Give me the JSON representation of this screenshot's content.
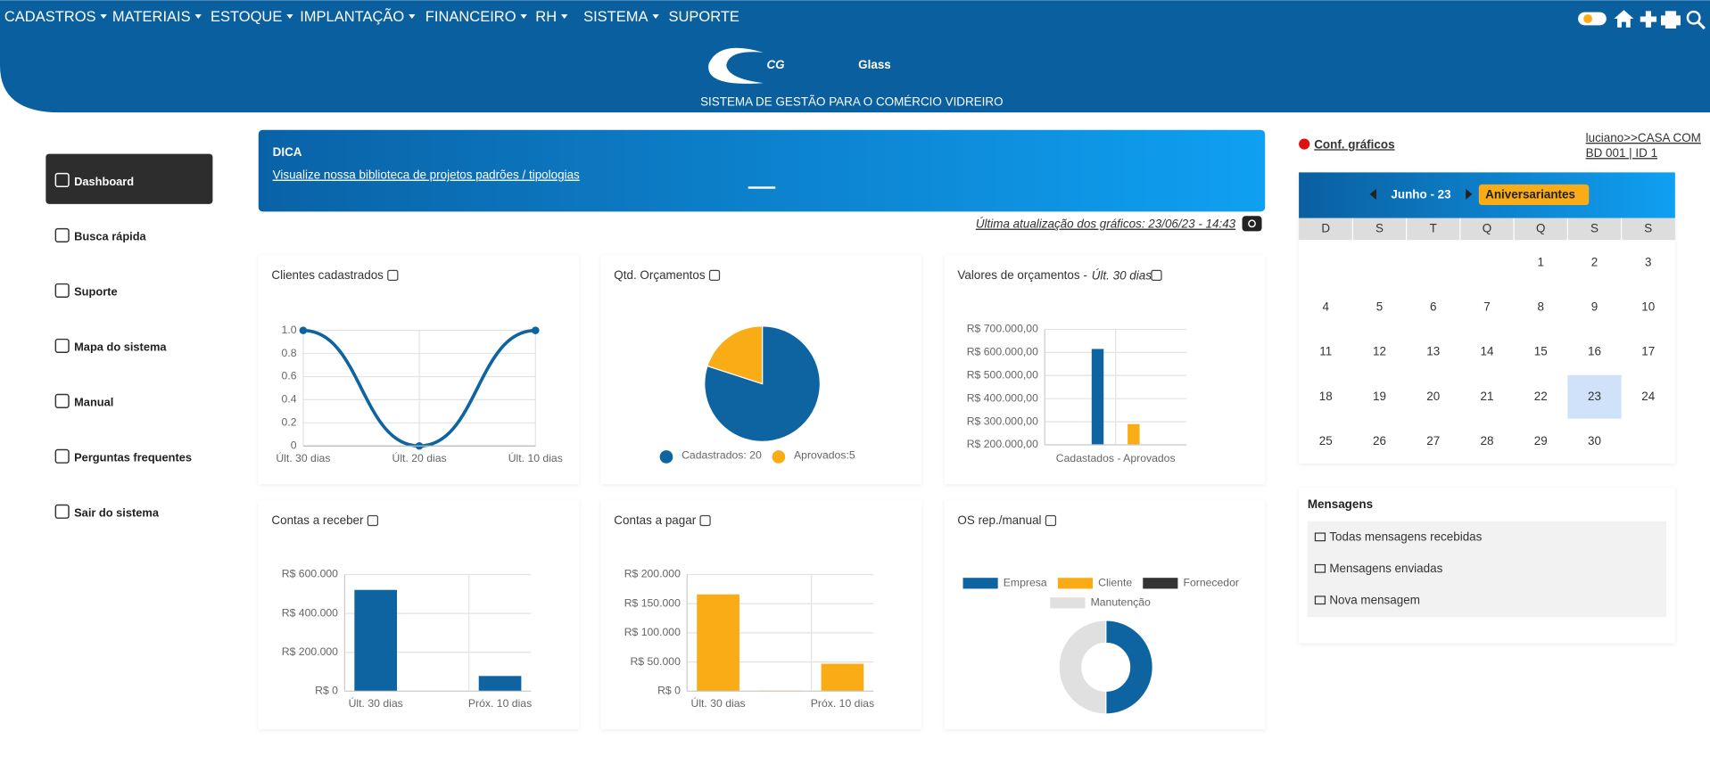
{
  "menu": {
    "items": [
      "CADASTROS",
      "MATERIAIS",
      "ESTOQUE",
      "IMPLANTAÇÃO",
      "FINANCEIRO",
      "RH",
      "SISTEMA",
      "SUPORTE"
    ]
  },
  "logo": {
    "mark": "CG",
    "name": "Glass",
    "tagline": "SISTEMA DE GESTÃO PARA O COMÉRCIO VIDREIRO"
  },
  "sidebar": {
    "items": [
      "Dashboard",
      "Busca rápida",
      "Suporte",
      "Mapa do sistema",
      "Manual",
      "Perguntas frequentes",
      "Sair do sistema"
    ]
  },
  "tip": {
    "title": "DICA",
    "link": "Visualize nossa biblioteca de projetos padrões / tipologias"
  },
  "last_update": "Última atualização dos gráficos: 23/06/23 - 14:43",
  "charts": [
    {
      "type": "line",
      "title": "Clientes cadastrados",
      "categories": [
        "Últ. 30 dias",
        "Últ. 20 dias",
        "Últ. 10 dias"
      ],
      "values": [
        1,
        0,
        1
      ],
      "color": "#0e64a0",
      "ylim": [
        0,
        1
      ],
      "yticks": [
        0,
        0.2,
        0.4,
        0.6,
        0.8,
        {
          "value": 1,
          "label": "1.0"
        }
      ],
      "grid": true
    },
    {
      "type": "pie",
      "title": "Qtd. Orçamentos",
      "categories": [
        "Cadastrados: 20",
        "Aprovados:5"
      ],
      "values": [
        20,
        5
      ],
      "colors": [
        "#0e64a0",
        "#f9ac16"
      ]
    },
    {
      "type": "bar",
      "title": "Valores de orçamentos -",
      "title_note": "Últ. 30 dias",
      "categories": [
        "Cadastados - Aprovados"
      ],
      "values": [
        615000,
        290000
      ],
      "colors": [
        "#0e64a0",
        "#f9ac16"
      ],
      "ylim": [
        200000,
        700000
      ],
      "yticks": [
        {
          "value": 200000,
          "label": "R$ 200.000,00"
        },
        {
          "value": 300000,
          "label": "R$ 300.000,00"
        },
        {
          "value": 400000,
          "label": "R$ 400.000,00"
        },
        {
          "value": 500000,
          "label": "R$ 500.000,00"
        },
        {
          "value": 600000,
          "label": "R$ 600.000,00"
        },
        {
          "value": 700000,
          "label": "R$ 700.000,00"
        }
      ],
      "grid": true
    },
    {
      "type": "bar",
      "title": "Contas a receber",
      "categories": [
        "Últ. 30 dias",
        null,
        "Próx. 10 dias"
      ],
      "values": [
        521000,
        0,
        78000
      ],
      "colors": [
        "#0e64a0",
        "#0e64a0",
        "#0e64a0"
      ],
      "ylim": [
        0,
        600000
      ],
      "yticks": [
        {
          "value": 0,
          "label": "R$ 0"
        },
        {
          "value": 200000,
          "label": "R$ 200.000"
        },
        {
          "value": 400000,
          "label": "R$ 400.000"
        },
        {
          "value": 600000,
          "label": "R$ 600.000"
        }
      ],
      "grid": true
    },
    {
      "type": "bar",
      "title": "Contas a pagar",
      "categories": [
        "Últ. 30 dias",
        null,
        "Próx. 10 dias"
      ],
      "values": [
        166000,
        1000,
        47000
      ],
      "colors": [
        "#f9ac16",
        "#f9ac16",
        "#f9ac16"
      ],
      "ylim": [
        0,
        200000
      ],
      "yticks": [
        {
          "value": 0,
          "label": "R$ 0"
        },
        {
          "value": 50000,
          "label": "R$ 50.000"
        },
        {
          "value": 100000,
          "label": "R$ 100.000"
        },
        {
          "value": 150000,
          "label": "R$ 150.000"
        },
        {
          "value": 200000,
          "label": "R$ 200.000"
        }
      ],
      "grid": true
    },
    {
      "type": "doughnut",
      "title": "OS rep./manual",
      "categories": [
        "Empresa",
        "Cliente",
        "Fornecedor",
        "Manutenção"
      ],
      "values": [
        50,
        0,
        0,
        50
      ],
      "colors": [
        "#0e64a0",
        "#f9ac16",
        "#333333",
        "#e0e0e0"
      ]
    }
  ],
  "settings": {
    "link": "Conf. gráficos",
    "user": "luciano>>CASA COM",
    "db": "BD 001 | ID 1"
  },
  "calendar": {
    "title": "Junho - 23",
    "button": "Aniversariantes",
    "weekdays": [
      "D",
      "S",
      "T",
      "Q",
      "Q",
      "S",
      "S"
    ],
    "weeks": [
      [
        null,
        null,
        null,
        null,
        1,
        2,
        3
      ],
      [
        4,
        5,
        6,
        7,
        8,
        9,
        10
      ],
      [
        11,
        12,
        13,
        14,
        15,
        16,
        17
      ],
      [
        18,
        19,
        20,
        21,
        22,
        23,
        24
      ],
      [
        25,
        26,
        27,
        28,
        29,
        30,
        null
      ]
    ],
    "selected": 23
  },
  "messages": {
    "title": "Mensagens",
    "items": [
      "Todas mensagens recebidas",
      "Mensagens enviadas",
      "Nova mensagem"
    ]
  }
}
